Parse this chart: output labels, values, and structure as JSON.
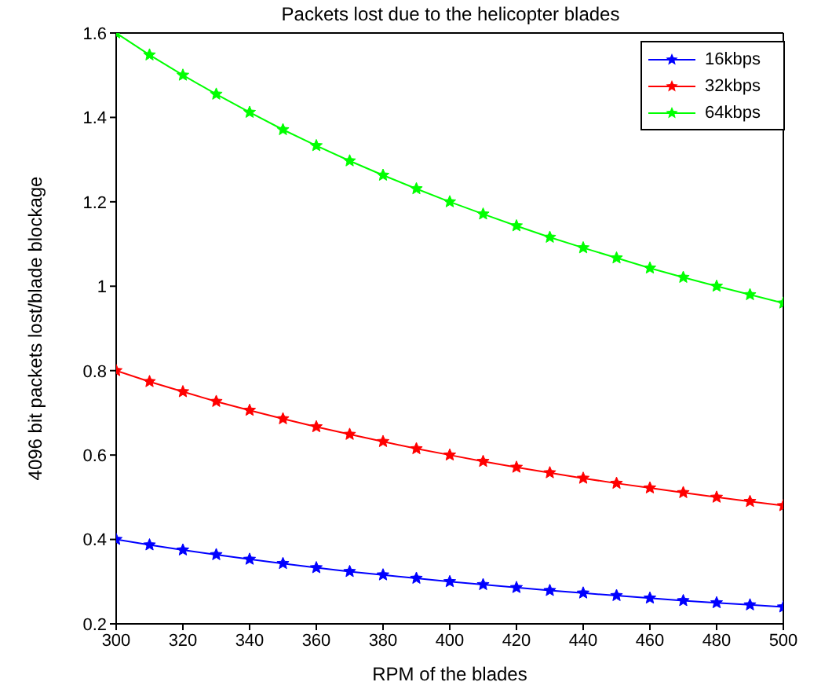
{
  "chart_data": {
    "type": "line",
    "title": "Packets lost due to the helicopter blades",
    "xlabel": "RPM of the blades",
    "ylabel": "4096 bit packets lost/blade blockage",
    "x": [
      300,
      310,
      320,
      330,
      340,
      350,
      360,
      370,
      380,
      390,
      400,
      410,
      420,
      430,
      440,
      450,
      460,
      470,
      480,
      490,
      500
    ],
    "series": [
      {
        "name": "16kbps",
        "color": "#0000ff",
        "values": [
          0.4,
          0.387,
          0.375,
          0.364,
          0.353,
          0.343,
          0.333,
          0.324,
          0.316,
          0.308,
          0.3,
          0.293,
          0.286,
          0.279,
          0.273,
          0.267,
          0.261,
          0.255,
          0.25,
          0.245,
          0.24
        ]
      },
      {
        "name": "32kbps",
        "color": "#ff0000",
        "values": [
          0.8,
          0.774,
          0.75,
          0.727,
          0.706,
          0.686,
          0.667,
          0.649,
          0.632,
          0.615,
          0.6,
          0.585,
          0.571,
          0.558,
          0.545,
          0.533,
          0.522,
          0.511,
          0.5,
          0.49,
          0.48
        ]
      },
      {
        "name": "64kbps",
        "color": "#00ff00",
        "values": [
          1.6,
          1.548,
          1.5,
          1.455,
          1.412,
          1.371,
          1.333,
          1.297,
          1.263,
          1.231,
          1.2,
          1.171,
          1.143,
          1.116,
          1.091,
          1.067,
          1.043,
          1.021,
          1.0,
          0.98,
          0.96
        ]
      }
    ],
    "xlim": [
      300,
      500
    ],
    "xticks": [
      300,
      320,
      340,
      360,
      380,
      400,
      420,
      440,
      460,
      480,
      500
    ],
    "ylim": [
      0.2,
      1.6
    ],
    "yticks": [
      0.2,
      0.4,
      0.6,
      0.8,
      1,
      1.2,
      1.4,
      1.6
    ],
    "grid": false,
    "legend": "top right",
    "marker": "star",
    "line_style": "solid"
  }
}
